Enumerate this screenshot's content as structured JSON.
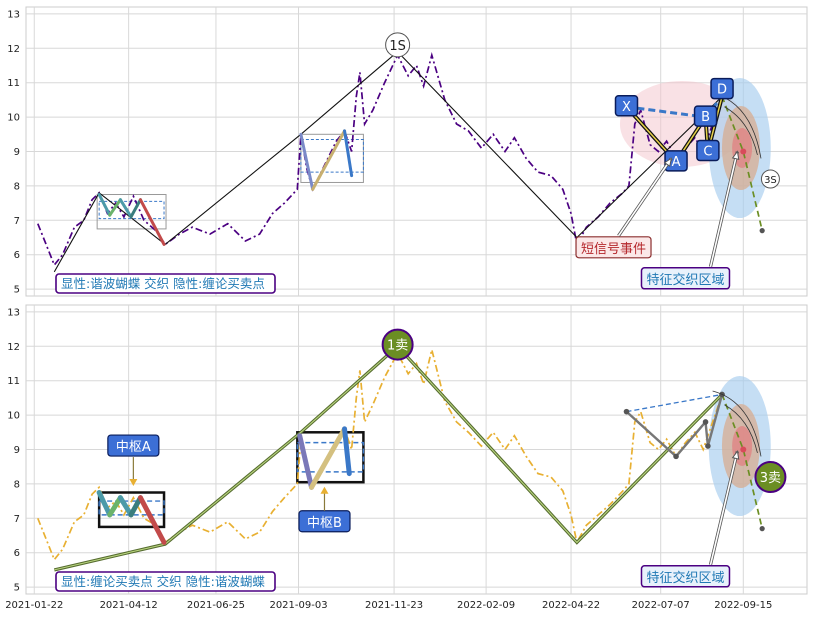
{
  "chart_data": [
    {
      "type": "line",
      "panel": "top",
      "ylim": [
        4.8,
        13.2
      ],
      "yticks": [
        5,
        6,
        7,
        8,
        9,
        10,
        11,
        12,
        13
      ],
      "grid": true,
      "series": [
        {
          "style": "dash-dot",
          "color": "#4b0082",
          "points": [
            [
              "2021-01-25",
              6.9
            ],
            [
              "2021-02-01",
              6.3
            ],
            [
              "2021-02-08",
              5.7
            ],
            [
              "2021-02-15",
              6.0
            ],
            [
              "2021-02-25",
              6.8
            ],
            [
              "2021-03-05",
              7.0
            ],
            [
              "2021-03-12",
              7.6
            ],
            [
              "2021-03-18",
              7.8
            ],
            [
              "2021-03-25",
              7.2
            ],
            [
              "2021-04-01",
              7.5
            ],
            [
              "2021-04-08",
              7.1
            ],
            [
              "2021-04-16",
              7.7
            ],
            [
              "2021-04-25",
              7.0
            ],
            [
              "2021-05-05",
              6.7
            ],
            [
              "2021-05-13",
              6.3
            ],
            [
              "2021-05-25",
              6.6
            ],
            [
              "2021-06-05",
              6.8
            ],
            [
              "2021-06-20",
              6.6
            ],
            [
              "2021-07-05",
              6.9
            ],
            [
              "2021-07-20",
              6.4
            ],
            [
              "2021-08-01",
              6.6
            ],
            [
              "2021-08-12",
              7.2
            ],
            [
              "2021-08-22",
              7.5
            ],
            [
              "2021-09-02",
              7.9
            ],
            [
              "2021-09-05",
              9.5
            ],
            [
              "2021-09-10",
              8.5
            ],
            [
              "2021-09-15",
              7.9
            ],
            [
              "2021-09-25",
              8.6
            ],
            [
              "2021-10-05",
              9.3
            ],
            [
              "2021-10-12",
              9.6
            ],
            [
              "2021-10-18",
              9.0
            ],
            [
              "2021-10-22",
              10.6
            ],
            [
              "2021-10-25",
              11.3
            ],
            [
              "2021-10-29",
              9.8
            ],
            [
              "2021-11-05",
              10.2
            ],
            [
              "2021-11-15",
              11.0
            ],
            [
              "2021-11-26",
              11.8
            ],
            [
              "2021-12-05",
              11.2
            ],
            [
              "2021-12-12",
              11.5
            ],
            [
              "2021-12-18",
              10.9
            ],
            [
              "2021-12-25",
              11.8
            ],
            [
              "2022-01-05",
              10.5
            ],
            [
              "2022-01-15",
              9.8
            ],
            [
              "2022-01-25",
              9.6
            ],
            [
              "2022-02-05",
              9.1
            ],
            [
              "2022-02-15",
              9.5
            ],
            [
              "2022-02-25",
              9.0
            ],
            [
              "2022-03-05",
              9.4
            ],
            [
              "2022-03-15",
              8.8
            ],
            [
              "2022-03-25",
              8.4
            ],
            [
              "2022-04-05",
              8.3
            ],
            [
              "2022-04-15",
              7.9
            ],
            [
              "2022-04-22",
              7.2
            ],
            [
              "2022-04-27",
              6.3
            ],
            [
              "2022-05-05",
              6.8
            ],
            [
              "2022-05-15",
              7.1
            ],
            [
              "2022-05-25",
              7.5
            ],
            [
              "2022-06-05",
              7.8
            ],
            [
              "2022-06-10",
              8.0
            ],
            [
              "2022-06-15",
              9.8
            ],
            [
              "2022-06-20",
              10.2
            ],
            [
              "2022-06-28",
              9.2
            ],
            [
              "2022-07-05",
              9.0
            ],
            [
              "2022-07-12",
              9.3
            ],
            [
              "2022-07-20",
              8.8
            ],
            [
              "2022-07-28",
              9.1
            ],
            [
              "2022-08-05",
              9.4
            ],
            [
              "2022-08-12",
              9.0
            ],
            [
              "2022-08-20",
              9.8
            ],
            [
              "2022-08-28",
              10.6
            ]
          ]
        },
        {
          "style": "solid",
          "color": "#111111",
          "points": [
            [
              "2021-02-08",
              5.5
            ],
            [
              "2021-03-18",
              7.8
            ],
            [
              "2021-05-13",
              6.3
            ],
            [
              "2021-09-05",
              9.5
            ],
            [
              "2021-11-26",
              11.9
            ],
            [
              "2022-04-27",
              6.5
            ],
            [
              "2022-08-28",
              10.6
            ]
          ]
        },
        {
          "style": "dashed",
          "color": "#6b8e23",
          "points": [
            [
              "2022-08-28",
              10.6
            ],
            [
              "2022-09-15",
              9.0
            ],
            [
              "2022-10-01",
              6.7
            ]
          ]
        }
      ],
      "annotations": [
        {
          "text": "1S",
          "x": "2021-11-26",
          "y": 12.1
        },
        {
          "text": "X",
          "x": "2022-06-08",
          "y": 10.3
        },
        {
          "text": "A",
          "x": "2022-07-20",
          "y": 8.7
        },
        {
          "text": "B",
          "x": "2022-08-14",
          "y": 10.0
        },
        {
          "text": "C",
          "x": "2022-08-16",
          "y": 9.0
        },
        {
          "text": "D",
          "x": "2022-08-28",
          "y": 10.8
        },
        {
          "text": "3S",
          "x": "2022-10-08",
          "y": 8.2
        },
        {
          "text": "短信号事件",
          "x": "2022-05-28",
          "y": 6.2
        },
        {
          "text": "特征交织区域",
          "x": "2022-07-28",
          "y": 5.3
        }
      ],
      "legend_text": "显性:谐波蝴蝶 交织 隐性:缠论买卖点"
    },
    {
      "type": "line",
      "panel": "bottom",
      "ylim": [
        4.8,
        13.2
      ],
      "yticks": [
        5,
        6,
        7,
        8,
        9,
        10,
        11,
        12,
        13
      ],
      "grid": true,
      "xticks": [
        "2021-01-22",
        "2021-04-12",
        "2021-06-25",
        "2021-09-03",
        "2021-11-23",
        "2022-02-09",
        "2022-04-22",
        "2022-07-07",
        "2022-09-15"
      ],
      "series": [
        {
          "style": "dash-dot",
          "color": "#e8b032",
          "points": [
            [
              "2021-01-25",
              7.0
            ],
            [
              "2021-02-01",
              6.4
            ],
            [
              "2021-02-08",
              5.8
            ],
            [
              "2021-02-15",
              6.1
            ],
            [
              "2021-02-25",
              6.9
            ],
            [
              "2021-03-05",
              7.1
            ],
            [
              "2021-03-12",
              7.7
            ],
            [
              "2021-03-18",
              7.9
            ],
            [
              "2021-03-25",
              7.3
            ],
            [
              "2021-04-01",
              7.5
            ],
            [
              "2021-04-08",
              7.1
            ],
            [
              "2021-04-16",
              7.6
            ],
            [
              "2021-04-25",
              7.0
            ],
            [
              "2021-05-05",
              6.8
            ],
            [
              "2021-05-13",
              6.3
            ],
            [
              "2021-05-25",
              6.6
            ],
            [
              "2021-06-05",
              6.8
            ],
            [
              "2021-06-20",
              6.6
            ],
            [
              "2021-07-05",
              6.9
            ],
            [
              "2021-07-20",
              6.4
            ],
            [
              "2021-08-01",
              6.6
            ],
            [
              "2021-08-12",
              7.2
            ],
            [
              "2021-08-22",
              7.6
            ],
            [
              "2021-09-02",
              8.0
            ],
            [
              "2021-09-05",
              9.3
            ],
            [
              "2021-09-10",
              8.4
            ],
            [
              "2021-09-15",
              7.9
            ],
            [
              "2021-09-25",
              8.5
            ],
            [
              "2021-10-05",
              9.2
            ],
            [
              "2021-10-12",
              9.6
            ],
            [
              "2021-10-18",
              9.0
            ],
            [
              "2021-10-22",
              10.5
            ],
            [
              "2021-10-25",
              11.3
            ],
            [
              "2021-10-29",
              9.8
            ],
            [
              "2021-11-05",
              10.3
            ],
            [
              "2021-11-15",
              11.1
            ],
            [
              "2021-11-26",
              11.8
            ],
            [
              "2021-12-05",
              11.2
            ],
            [
              "2021-12-12",
              11.5
            ],
            [
              "2021-12-18",
              10.9
            ],
            [
              "2021-12-25",
              11.9
            ],
            [
              "2022-01-05",
              10.4
            ],
            [
              "2022-01-15",
              9.8
            ],
            [
              "2022-01-25",
              9.5
            ],
            [
              "2022-02-05",
              9.1
            ],
            [
              "2022-02-15",
              9.5
            ],
            [
              "2022-02-25",
              9.0
            ],
            [
              "2022-03-05",
              9.4
            ],
            [
              "2022-03-15",
              8.8
            ],
            [
              "2022-03-25",
              8.3
            ],
            [
              "2022-04-05",
              8.2
            ],
            [
              "2022-04-15",
              7.8
            ],
            [
              "2022-04-22",
              7.1
            ],
            [
              "2022-04-27",
              6.3
            ],
            [
              "2022-05-05",
              6.8
            ],
            [
              "2022-05-15",
              7.1
            ],
            [
              "2022-05-25",
              7.4
            ],
            [
              "2022-06-05",
              7.8
            ],
            [
              "2022-06-10",
              8.0
            ],
            [
              "2022-06-15",
              9.8
            ],
            [
              "2022-06-20",
              10.1
            ],
            [
              "2022-06-28",
              9.2
            ],
            [
              "2022-07-05",
              9.0
            ],
            [
              "2022-07-12",
              9.3
            ],
            [
              "2022-07-20",
              8.8
            ],
            [
              "2022-07-28",
              9.2
            ],
            [
              "2022-08-05",
              9.5
            ],
            [
              "2022-08-12",
              9.0
            ],
            [
              "2022-08-20",
              9.8
            ],
            [
              "2022-08-28",
              10.6
            ]
          ]
        },
        {
          "style": "solid",
          "color": "#556b2f",
          "points": [
            [
              "2021-02-08",
              5.5
            ],
            [
              "2021-05-13",
              6.25
            ],
            [
              "2021-09-05",
              9.5
            ],
            [
              "2021-11-26",
              12.0
            ],
            [
              "2022-04-27",
              6.3
            ],
            [
              "2022-08-28",
              10.6
            ]
          ]
        },
        {
          "style": "dashed",
          "color": "#6b8e23",
          "points": [
            [
              "2022-08-28",
              10.6
            ],
            [
              "2022-09-15",
              9.0
            ],
            [
              "2022-10-01",
              6.7
            ]
          ]
        }
      ],
      "annotations": [
        {
          "text": "1卖",
          "x": "2021-11-26",
          "y": 12.05
        },
        {
          "text": "3卖",
          "x": "2022-10-08",
          "y": 8.2
        },
        {
          "text": "中枢A",
          "x": "2021-04-16",
          "y": 9.1
        },
        {
          "text": "中枢B",
          "x": "2021-09-25",
          "y": 6.9
        },
        {
          "text": "特征交织区域",
          "x": "2022-07-28",
          "y": 5.3
        }
      ],
      "legend_text": "显性:缠论买卖点 交织 隐性:谐波蝴蝶"
    }
  ]
}
